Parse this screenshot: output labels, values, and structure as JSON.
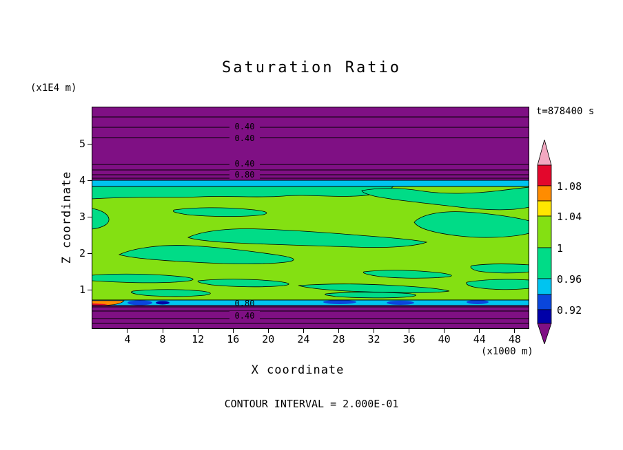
{
  "title": "Saturation Ratio",
  "annotations": {
    "time": "t=878400 s",
    "contour_interval": "CONTOUR INTERVAL = 2.000E-01"
  },
  "axes": {
    "x": {
      "label": "X coordinate",
      "unit": "(x1000 m)",
      "ticks": [
        "4",
        "8",
        "12",
        "16",
        "20",
        "24",
        "28",
        "32",
        "36",
        "40",
        "44",
        "48"
      ]
    },
    "y": {
      "label": "Z coordinate",
      "unit": "(x1E4 m)",
      "ticks": [
        "1",
        "2",
        "3",
        "4",
        "5"
      ]
    }
  },
  "contour_labels": [
    "0.40",
    "0.40",
    "0.40",
    "0.80",
    "0.80",
    "0.40"
  ],
  "colorbar": {
    "tick_labels": [
      "1.08",
      "1.04",
      "1",
      "0.96",
      "0.92"
    ],
    "colors_top_to_bottom": [
      "#F2A8C0",
      "#E3072C",
      "#FF8C00",
      "#FFE600",
      "#84E012",
      "#00DC87",
      "#00C4F0",
      "#0A46DC",
      "#0000A8",
      "#7F1084"
    ]
  },
  "chart_data": {
    "type": "heatmap",
    "title": "Saturation Ratio",
    "xlabel": "X coordinate (x1000 m)",
    "ylabel": "Z coordinate (x1E4 m)",
    "xlim": [
      0,
      49.7
    ],
    "ylim": [
      0,
      6.05
    ],
    "x_ticks": [
      4,
      8,
      12,
      16,
      20,
      24,
      28,
      32,
      36,
      40,
      44,
      48
    ],
    "y_ticks": [
      1,
      2,
      3,
      4,
      5
    ],
    "time_seconds": 878400,
    "contour_interval": 0.2,
    "colorbar_tick_values": [
      1.08,
      1.04,
      1.0,
      0.96,
      0.92
    ],
    "legend_position": "right",
    "grid": false,
    "field_regions": [
      {
        "region": "upper subsaturated band",
        "z_range": [
          4.0,
          6.05
        ],
        "saturation_ratio": "≈0.3–0.9, purple fill; labeled line contours 0.40, 0.40 near z≈5.4 and 0.40, 0.80 near z≈4.2"
      },
      {
        "region": "upper transition stripe",
        "z_range": [
          3.85,
          4.0
        ],
        "saturation_ratio": "≈0.92–0.98, cyan band across full width"
      },
      {
        "region": "saturated cloud layer",
        "z_range": [
          0.75,
          3.85
        ],
        "saturation_ratio": "≈1.00–1.04 yellow-green field with many ≈0.96–1.00 spring-green patches"
      },
      {
        "region": "lower transition stripe",
        "z_range": [
          0.62,
          0.75
        ],
        "saturation_ratio": "≈0.92–0.98 cyan with ≈0.92 blue patches; >1.04 orange/red patch at far left"
      },
      {
        "region": "lower subsaturated band",
        "z_range": [
          0,
          0.62
        ],
        "saturation_ratio": "≈0.3–0.9 purple; labeled line contours 0.80 (z≈0.65) and 0.40 (z≈0.28)"
      }
    ]
  }
}
